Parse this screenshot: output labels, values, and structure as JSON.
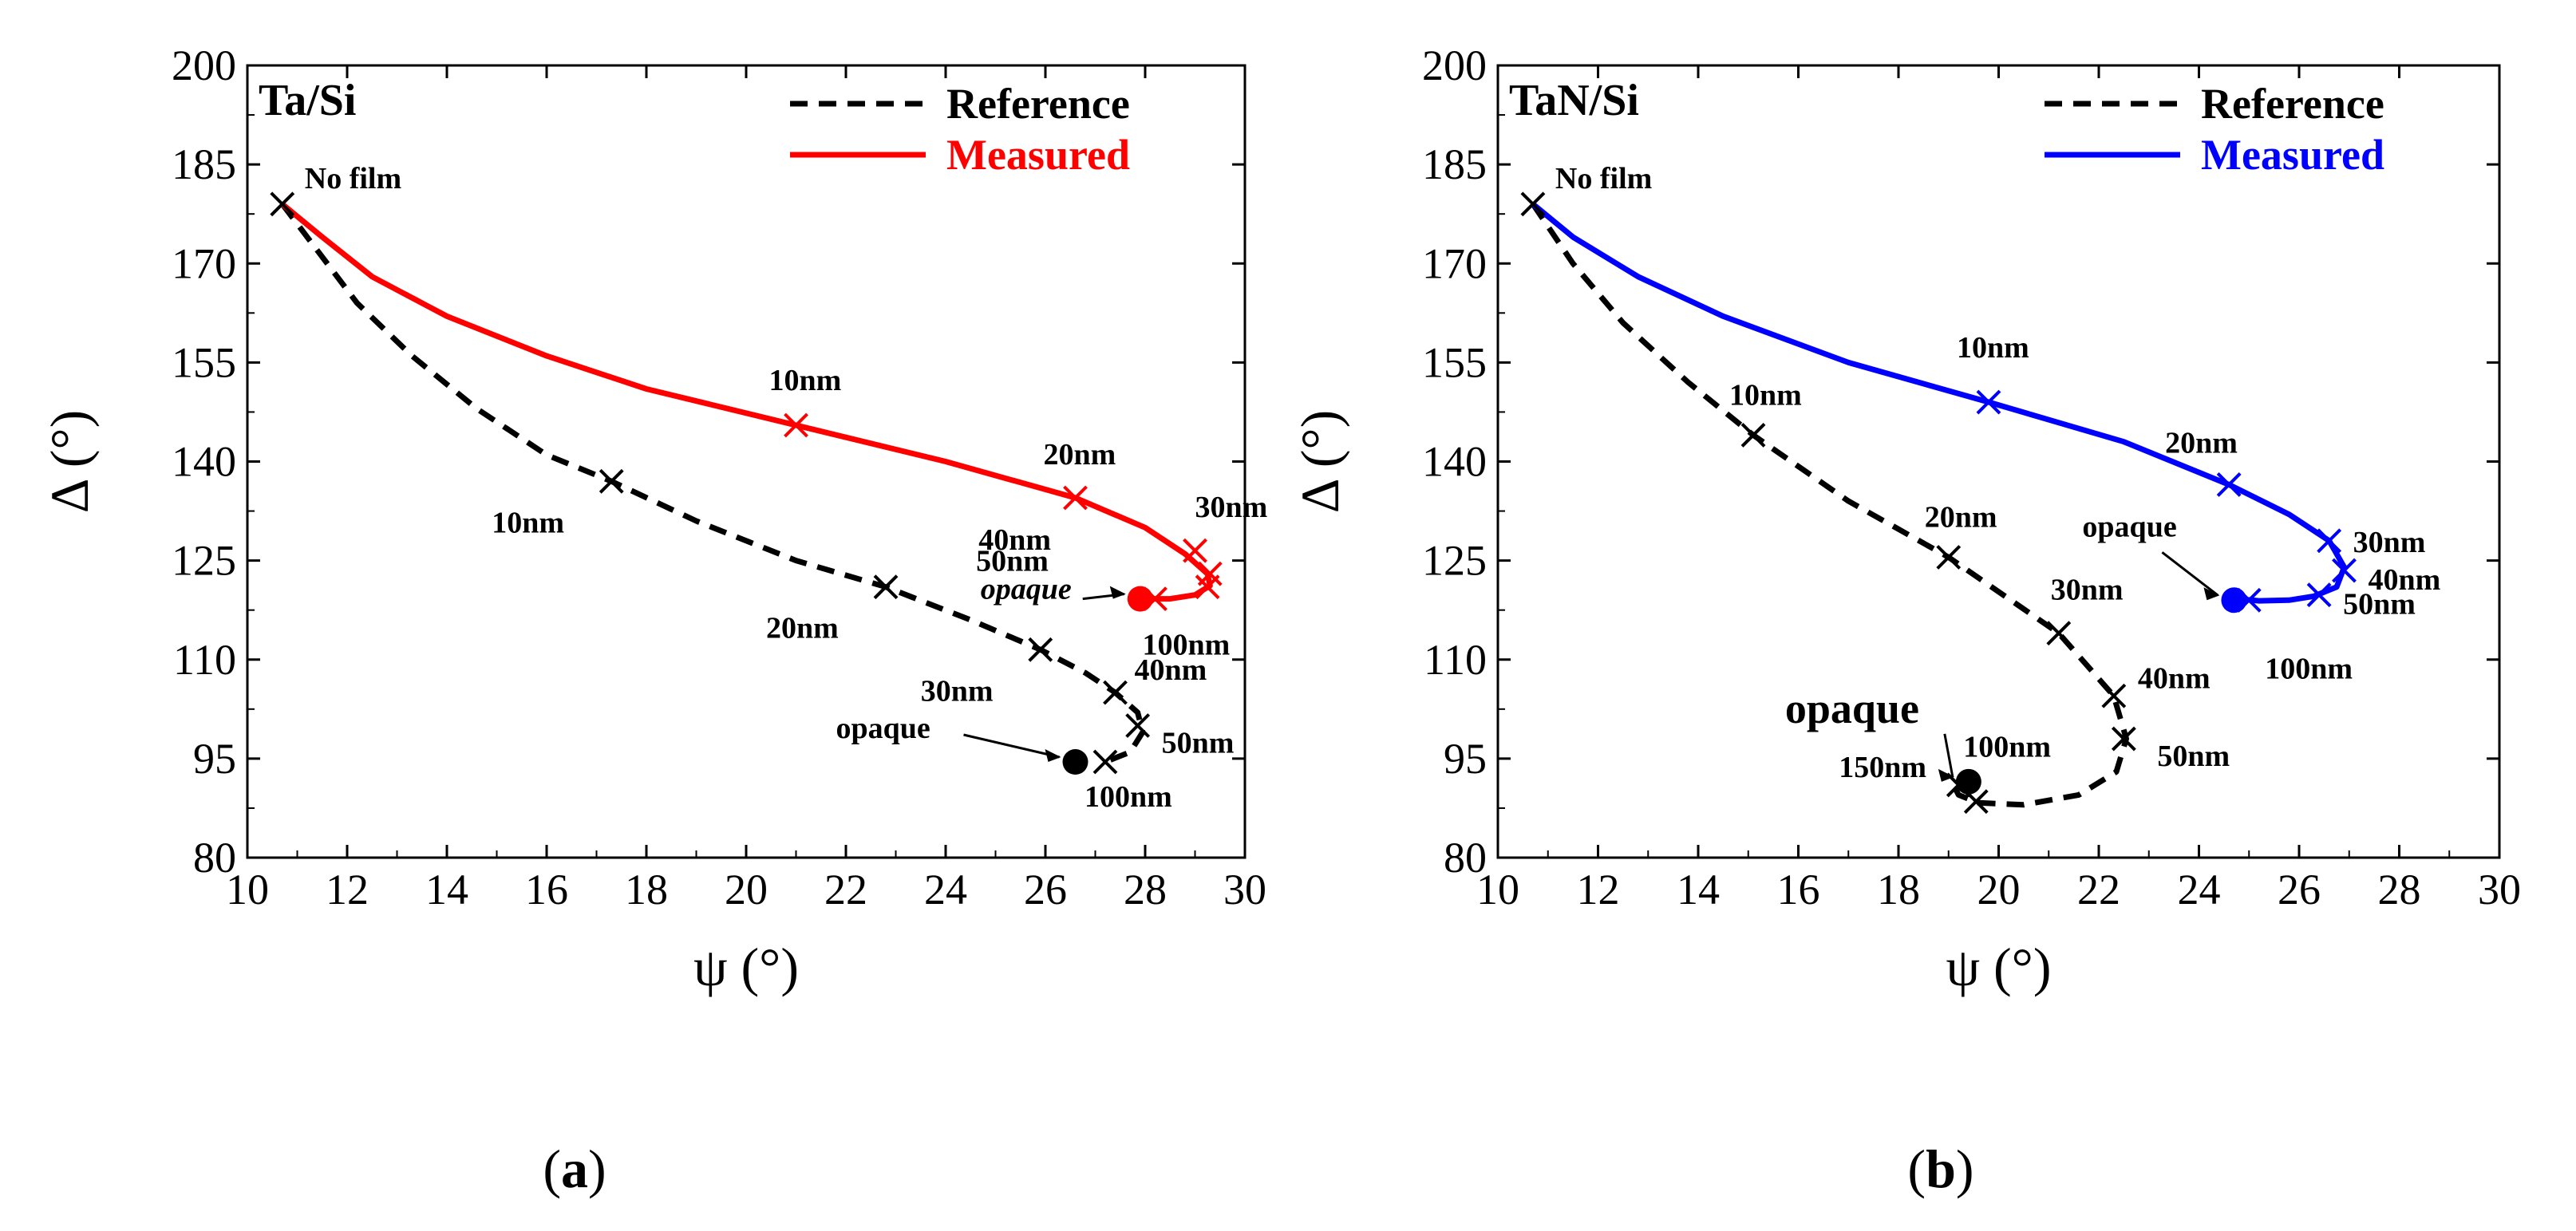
{
  "chart_data": [
    {
      "type": "line",
      "panel": "a",
      "title": "Ta/Si",
      "caption": {
        "open": "(",
        "letter": "a",
        "close": ")"
      },
      "xlabel": "ψ (°)",
      "ylabel": "Δ (°)",
      "xlim": [
        10,
        30
      ],
      "ylim": [
        80,
        200
      ],
      "xticks": [
        10,
        12,
        14,
        16,
        18,
        20,
        22,
        24,
        26,
        28,
        30
      ],
      "yticks": [
        80,
        95,
        110,
        125,
        140,
        155,
        170,
        185,
        200
      ],
      "legend": [
        {
          "label": "Reference",
          "style": "dashed",
          "color": "#000000"
        },
        {
          "label": "Measured",
          "style": "solid",
          "color": "#ff0000"
        }
      ],
      "series": [
        {
          "name": "Reference",
          "color": "#000000",
          "style": "dashed",
          "x": [
            10.7,
            11.4,
            12.2,
            13.3,
            14.6,
            16.0,
            17.3,
            19.0,
            21.0,
            22.8,
            24.5,
            25.9,
            26.8,
            27.4,
            27.85,
            27.95,
            27.7,
            27.2
          ],
          "y": [
            179,
            172,
            164,
            156,
            148,
            141,
            137,
            131,
            125,
            121,
            116,
            111.5,
            108,
            105,
            102,
            99,
            96,
            94.5
          ]
        },
        {
          "name": "Measured",
          "color": "#ff0000",
          "style": "solid",
          "x": [
            10.7,
            11.5,
            12.5,
            14.0,
            16.0,
            18.0,
            21.0,
            24.0,
            26.6,
            28.0,
            28.8,
            29.25,
            29.3,
            29.0,
            28.5,
            28.0
          ],
          "y": [
            179,
            174,
            168,
            162,
            156,
            151,
            145.5,
            140,
            134.5,
            130,
            126,
            123,
            121.2,
            119.8,
            119.2,
            119.2
          ]
        }
      ],
      "markers": [
        {
          "series": "Measured",
          "x": 10.7,
          "y": 179,
          "label": "No film"
        },
        {
          "series": "Reference",
          "x": 17.3,
          "y": 137,
          "label": "10nm"
        },
        {
          "series": "Reference",
          "x": 22.8,
          "y": 121,
          "label": "20nm"
        },
        {
          "series": "Reference",
          "x": 25.9,
          "y": 111.5,
          "label": "30nm"
        },
        {
          "series": "Reference",
          "x": 27.4,
          "y": 105,
          "label": "40nm"
        },
        {
          "series": "Reference",
          "x": 27.85,
          "y": 100,
          "label": "50nm"
        },
        {
          "series": "Reference",
          "x": 27.2,
          "y": 94.5,
          "label": "100nm"
        },
        {
          "series": "Measured",
          "x": 21.0,
          "y": 145.5,
          "label": "10nm"
        },
        {
          "series": "Measured",
          "x": 26.6,
          "y": 134.5,
          "label": "20nm"
        },
        {
          "series": "Measured",
          "x": 29.0,
          "y": 126.5,
          "label": "30nm"
        },
        {
          "series": "Measured",
          "x": 29.3,
          "y": 123,
          "label": "40nm"
        },
        {
          "series": "Measured",
          "x": 29.25,
          "y": 121,
          "label": "50nm"
        },
        {
          "series": "Measured",
          "x": 28.2,
          "y": 119.2,
          "label": "100nm"
        }
      ],
      "opaque_points": [
        {
          "series": "Reference",
          "x": 26.6,
          "y": 94.5,
          "label": "opaque"
        },
        {
          "series": "Measured",
          "x": 27.9,
          "y": 119.2,
          "label": "opaque"
        }
      ]
    },
    {
      "type": "line",
      "panel": "b",
      "title": "TaN/Si",
      "caption": {
        "open": "(",
        "letter": "b",
        "close": ")"
      },
      "xlabel": "ψ (°)",
      "ylabel": "Δ (°)",
      "xlim": [
        10,
        30
      ],
      "ylim": [
        80,
        200
      ],
      "xticks": [
        10,
        12,
        14,
        16,
        18,
        20,
        22,
        24,
        26,
        28,
        30
      ],
      "yticks": [
        80,
        95,
        110,
        125,
        140,
        155,
        170,
        185,
        200
      ],
      "legend": [
        {
          "label": "Reference",
          "style": "dashed",
          "color": "#000000"
        },
        {
          "label": "Measured",
          "style": "solid",
          "color": "#0000ff"
        }
      ],
      "series": [
        {
          "name": "Reference",
          "color": "#000000",
          "style": "dashed",
          "x": [
            10.7,
            11.5,
            12.5,
            13.8,
            15.1,
            17.0,
            19.0,
            21.2,
            22.3,
            22.55,
            22.35,
            21.6,
            20.5,
            19.6,
            19.2,
            19.1
          ],
          "y": [
            179,
            170,
            161,
            152,
            144,
            134,
            125.5,
            114,
            104.5,
            98,
            93,
            89.5,
            88,
            88.3,
            89.5,
            91
          ]
        },
        {
          "name": "Measured",
          "color": "#0000ff",
          "style": "solid",
          "x": [
            10.7,
            11.5,
            12.8,
            14.5,
            17.0,
            19.8,
            22.5,
            24.6,
            25.8,
            26.6,
            26.9,
            26.75,
            26.3,
            25.8,
            25.2,
            24.9
          ],
          "y": [
            179,
            174,
            168,
            162,
            155,
            149,
            143,
            136.5,
            132,
            128,
            124,
            121,
            119.6,
            119,
            118.9,
            119.1
          ]
        }
      ],
      "markers": [
        {
          "series": "Measured",
          "x": 10.7,
          "y": 179,
          "label": "No film"
        },
        {
          "series": "Reference",
          "x": 15.1,
          "y": 144,
          "label": "10nm"
        },
        {
          "series": "Reference",
          "x": 19.0,
          "y": 125.5,
          "label": "20nm"
        },
        {
          "series": "Reference",
          "x": 21.2,
          "y": 114,
          "label": "30nm"
        },
        {
          "series": "Reference",
          "x": 22.3,
          "y": 104.5,
          "label": "40nm"
        },
        {
          "series": "Reference",
          "x": 22.5,
          "y": 98,
          "label": "50nm"
        },
        {
          "series": "Reference",
          "x": 19.55,
          "y": 88.5,
          "label": "100nm"
        },
        {
          "series": "Reference",
          "x": 19.2,
          "y": 91,
          "label": "150nm"
        },
        {
          "series": "Measured",
          "x": 19.8,
          "y": 149,
          "label": "10nm"
        },
        {
          "series": "Measured",
          "x": 24.6,
          "y": 136.5,
          "label": "20nm"
        },
        {
          "series": "Measured",
          "x": 26.6,
          "y": 128,
          "label": "30nm"
        },
        {
          "series": "Measured",
          "x": 26.9,
          "y": 123.5,
          "label": "40nm"
        },
        {
          "series": "Measured",
          "x": 26.4,
          "y": 119.8,
          "label": "50nm"
        },
        {
          "series": "Measured",
          "x": 25.0,
          "y": 119,
          "label": "100nm"
        }
      ],
      "opaque_points": [
        {
          "series": "Reference",
          "x": 19.4,
          "y": 91.5,
          "label": "opaque"
        },
        {
          "series": "Measured",
          "x": 24.7,
          "y": 119,
          "label": "opaque"
        }
      ]
    }
  ]
}
